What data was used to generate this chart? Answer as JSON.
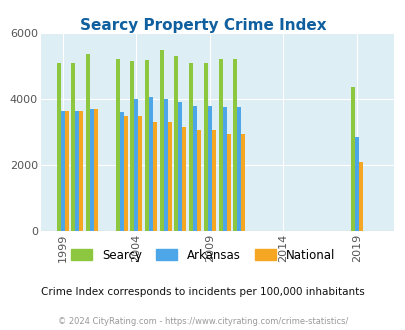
{
  "title": "Searcy Property Crime Index",
  "title_color": "#1060a0",
  "years": [
    1999,
    2000,
    2001,
    2003,
    2004,
    2005,
    2006,
    2007,
    2008,
    2009,
    2010,
    2011,
    2019
  ],
  "searcy": [
    5100,
    5100,
    5350,
    5200,
    5150,
    5180,
    5500,
    5300,
    5100,
    5100,
    5200,
    5200,
    4350
  ],
  "arkansas": [
    3650,
    3650,
    3700,
    3600,
    4000,
    4050,
    4000,
    3900,
    3800,
    3800,
    3750,
    3750,
    2850
  ],
  "national": [
    3650,
    3650,
    3700,
    3500,
    3500,
    3300,
    3300,
    3150,
    3050,
    3050,
    2950,
    2950,
    2100
  ],
  "color_searcy": "#8dc63f",
  "color_arkansas": "#4da6e8",
  "color_national": "#f5a623",
  "bg_color": "#ddeef4",
  "ylim": [
    0,
    6000
  ],
  "yticks": [
    0,
    2000,
    4000,
    6000
  ],
  "xlim_min": 1997.5,
  "xlim_max": 2021.5,
  "xtick_positions": [
    1999,
    2004,
    2009,
    2014,
    2019
  ],
  "footer_text": "© 2024 CityRating.com - https://www.cityrating.com/crime-statistics/",
  "subtitle_text": "Crime Index corresponds to incidents per 100,000 inhabitants",
  "legend_labels": [
    "Searcy",
    "Arkansas",
    "National"
  ]
}
